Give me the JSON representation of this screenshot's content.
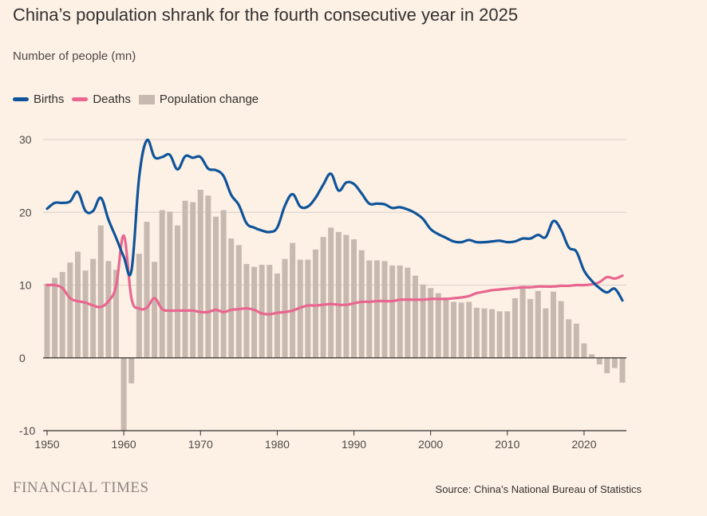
{
  "title": "China’s population shrank for the fourth consecutive year in 2025",
  "subtitle": "Number of people (mn)",
  "legend": {
    "births": "Births",
    "deaths": "Deaths",
    "change": "Population change"
  },
  "colors": {
    "background": "#fdf1e6",
    "births": "#0f5499",
    "deaths": "#e8668f",
    "change": "#c8b9b0",
    "grid": "#dacfc7",
    "axis": "#33302e"
  },
  "footer": {
    "brand": "FINANCIAL TIMES",
    "source": "Source: China’s National Bureau of Statistics"
  },
  "chart_data": {
    "type": "bar",
    "title": "China’s population shrank for the fourth consecutive year in 2025",
    "ylabel": "Number of people (mn)",
    "xlabel": "",
    "ylim": [
      -10,
      30
    ],
    "xlim": [
      1950,
      2025
    ],
    "y_ticks": [
      -10,
      0,
      10,
      20,
      30
    ],
    "x_ticks": [
      1950,
      1960,
      1970,
      1980,
      1990,
      2000,
      2010,
      2020
    ],
    "grid": true,
    "legend_position": "top-left",
    "years": [
      1950,
      1951,
      1952,
      1953,
      1954,
      1955,
      1956,
      1957,
      1958,
      1959,
      1960,
      1961,
      1962,
      1963,
      1964,
      1965,
      1966,
      1967,
      1968,
      1969,
      1970,
      1971,
      1972,
      1973,
      1974,
      1975,
      1976,
      1977,
      1978,
      1979,
      1980,
      1981,
      1982,
      1983,
      1984,
      1985,
      1986,
      1987,
      1988,
      1989,
      1990,
      1991,
      1992,
      1993,
      1994,
      1995,
      1996,
      1997,
      1998,
      1999,
      2000,
      2001,
      2002,
      2003,
      2004,
      2005,
      2006,
      2007,
      2008,
      2009,
      2010,
      2011,
      2012,
      2013,
      2014,
      2015,
      2016,
      2017,
      2018,
      2019,
      2020,
      2021,
      2022,
      2023,
      2024,
      2025
    ],
    "series": [
      {
        "name": "Population change",
        "type": "bar",
        "values": [
          10.2,
          11.0,
          11.8,
          13.1,
          14.6,
          12.0,
          13.6,
          18.2,
          13.3,
          12.1,
          -10.0,
          -3.5,
          14.3,
          18.7,
          13.2,
          20.3,
          20.1,
          18.2,
          21.6,
          21.4,
          23.1,
          22.3,
          19.4,
          20.3,
          16.4,
          15.5,
          12.9,
          12.5,
          12.8,
          12.8,
          11.6,
          13.6,
          15.8,
          13.5,
          13.5,
          14.9,
          16.6,
          17.9,
          17.3,
          16.9,
          16.3,
          14.8,
          13.4,
          13.4,
          13.3,
          12.7,
          12.7,
          12.4,
          11.3,
          10.1,
          9.6,
          8.9,
          8.3,
          7.7,
          7.6,
          7.7,
          6.9,
          6.8,
          6.7,
          6.4,
          6.4,
          8.2,
          9.9,
          8.1,
          9.2,
          6.8,
          9.1,
          7.8,
          5.3,
          4.7,
          2.0,
          0.5,
          -0.9,
          -2.1,
          -1.4,
          -3.4
        ]
      },
      {
        "name": "Births",
        "type": "line",
        "values": [
          20.5,
          21.3,
          21.3,
          21.5,
          22.8,
          20.2,
          20.2,
          22.0,
          19.0,
          16.5,
          13.9,
          12.0,
          24.8,
          29.9,
          27.6,
          27.6,
          27.9,
          25.9,
          27.7,
          27.5,
          27.6,
          26.0,
          25.8,
          25.0,
          22.4,
          21.0,
          18.5,
          17.9,
          17.5,
          17.3,
          17.9,
          20.9,
          22.5,
          20.8,
          20.8,
          22.0,
          23.8,
          25.3,
          23.0,
          24.1,
          23.9,
          22.6,
          21.2,
          21.2,
          21.1,
          20.6,
          20.7,
          20.4,
          19.9,
          19.1,
          17.7,
          17.0,
          16.5,
          16.0,
          15.9,
          16.2,
          15.9,
          15.9,
          16.0,
          16.1,
          15.9,
          16.0,
          16.4,
          16.4,
          16.9,
          16.6,
          18.8,
          17.6,
          15.2,
          14.6,
          12.0,
          10.6,
          9.6,
          9.0,
          9.5,
          7.9
        ]
      },
      {
        "name": "Deaths",
        "type": "line",
        "values": [
          10.0,
          10.0,
          9.6,
          8.2,
          7.8,
          7.6,
          7.2,
          7.0,
          7.8,
          9.9,
          16.8,
          8.2,
          6.8,
          6.9,
          8.2,
          6.7,
          6.5,
          6.5,
          6.5,
          6.5,
          6.3,
          6.3,
          6.6,
          6.3,
          6.6,
          6.7,
          6.8,
          6.6,
          6.1,
          6.0,
          6.2,
          6.3,
          6.5,
          6.9,
          7.2,
          7.2,
          7.3,
          7.4,
          7.3,
          7.3,
          7.5,
          7.7,
          7.7,
          7.8,
          7.8,
          7.8,
          8.0,
          8.0,
          8.0,
          8.0,
          8.1,
          8.1,
          8.1,
          8.2,
          8.3,
          8.5,
          8.9,
          9.1,
          9.3,
          9.4,
          9.5,
          9.6,
          9.7,
          9.7,
          9.8,
          9.8,
          9.8,
          9.9,
          9.9,
          10.0,
          10.0,
          10.1,
          10.4,
          11.1,
          10.9,
          11.3
        ]
      }
    ]
  }
}
